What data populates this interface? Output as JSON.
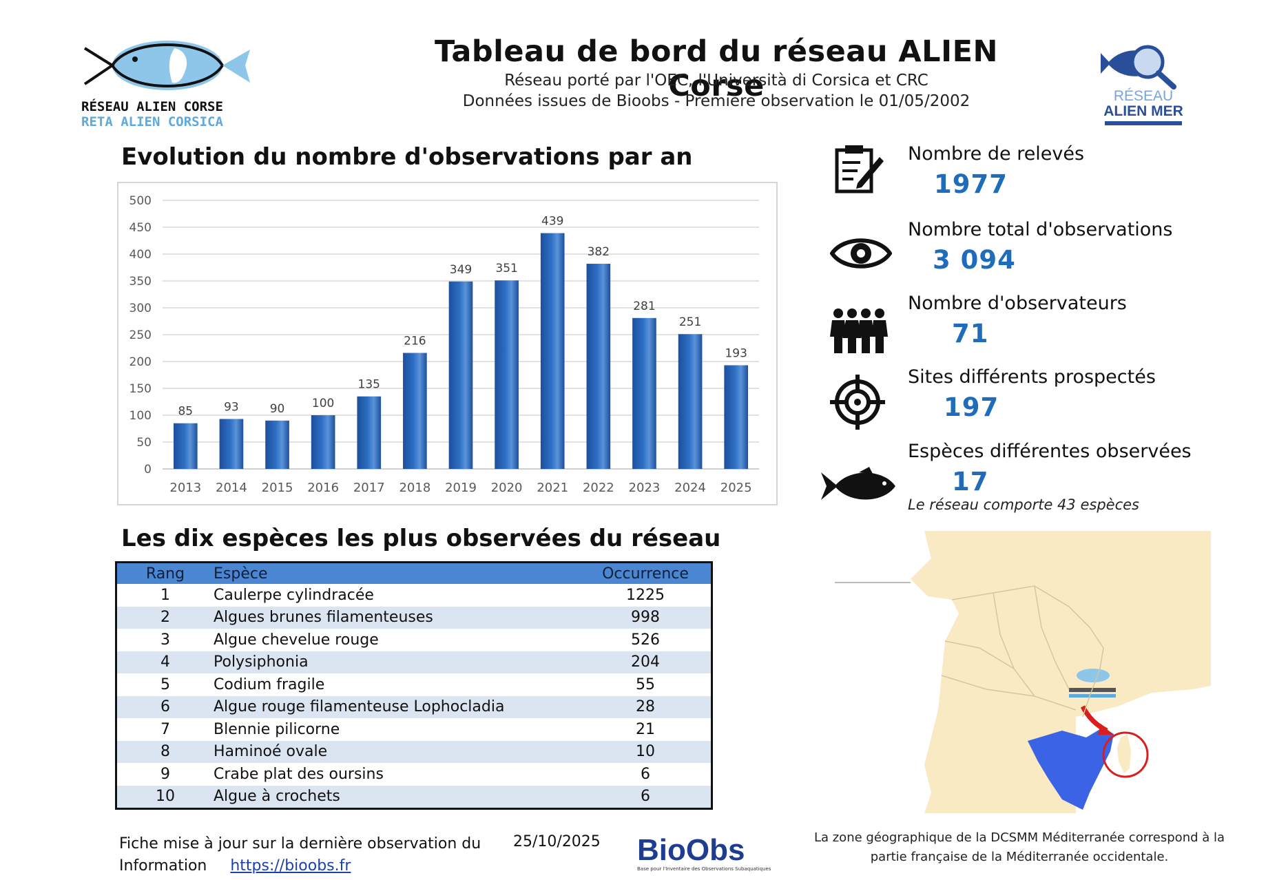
{
  "header": {
    "title": "Tableau de bord du réseau ALIEN Corse",
    "subtitle_1": "Réseau porté par l'OEC, l'Università di Corsica et CRC",
    "subtitle_2": "Données issues de Bioobs - Première observation le 01/05/2002"
  },
  "logos": {
    "left_line_1": "RÉSEAU ALIEN CORSE",
    "left_line_2": "RETA ALIEN CORSICA",
    "right_line_1": "RÉSEAU",
    "right_line_2": "ALIEN MER"
  },
  "chart_section_title": "Evolution du nombre d'observations par an",
  "chart_data": {
    "type": "bar",
    "categories": [
      "2013",
      "2014",
      "2015",
      "2016",
      "2017",
      "2018",
      "2019",
      "2020",
      "2021",
      "2022",
      "2023",
      "2024",
      "2025"
    ],
    "values": [
      85,
      93,
      90,
      100,
      135,
      216,
      349,
      351,
      439,
      382,
      281,
      251,
      193
    ],
    "ylim": [
      0,
      500
    ],
    "yticks": [
      0,
      50,
      100,
      150,
      200,
      250,
      300,
      350,
      400,
      450,
      500
    ],
    "grid": true,
    "data_labels": true,
    "bar_color": "#2e6fc4"
  },
  "stats": [
    {
      "icon": "clipboard-icon",
      "label": "Nombre de relevés",
      "value": "1977"
    },
    {
      "icon": "eye-icon",
      "label": "Nombre total d'observations",
      "value": "3 094"
    },
    {
      "icon": "people-icon",
      "label": "Nombre d'observateurs",
      "value": "71"
    },
    {
      "icon": "target-icon",
      "label": "Sites différents prospectés",
      "value": "197"
    },
    {
      "icon": "fish-icon",
      "label": "Espèces différentes observées",
      "value": "17"
    }
  ],
  "network_note": "Le réseau comporte 43 espèces",
  "table_section_title": "Les dix espèces les plus observées du réseau",
  "species_table": {
    "headers": [
      "Rang",
      "Espèce",
      "Occurrence"
    ],
    "rows": [
      [
        "1",
        "Caulerpe cylindracée",
        "1225"
      ],
      [
        "2",
        "Algues brunes filamenteuses",
        "998"
      ],
      [
        "3",
        "Algue chevelue rouge",
        "526"
      ],
      [
        "4",
        "Polysiphonia",
        "204"
      ],
      [
        "5",
        "Codium fragile",
        "55"
      ],
      [
        "6",
        "Algue rouge filamenteuse Lophocladia",
        "28"
      ],
      [
        "7",
        "Blennie pilicorne",
        "21"
      ],
      [
        "8",
        "Haminoé ovale",
        "10"
      ],
      [
        "9",
        "Crabe plat des oursins",
        "6"
      ],
      [
        "10",
        "Algue à crochets",
        "6"
      ]
    ]
  },
  "map": {
    "caption_1": "La zone géographique de la DCSMM Méditerranée correspond à la",
    "caption_2": "partie française de la Méditerranée occidentale."
  },
  "footer": {
    "line_1": "Fiche mise à jour sur la dernière observation du",
    "info_label": "Information",
    "link": "https://bioobs.fr",
    "date": "25/10/2025",
    "bioobs_logo": "BioObs",
    "bioobs_tagline": "Base pour l'Inventaire des Observations Subaquatiques"
  },
  "colors": {
    "accent": "#1f6cbb",
    "table_header": "#4a86d1",
    "table_alt_row": "#dbe5f1",
    "map_land": "#faeac4",
    "map_sea_zone": "#3b63e6"
  }
}
